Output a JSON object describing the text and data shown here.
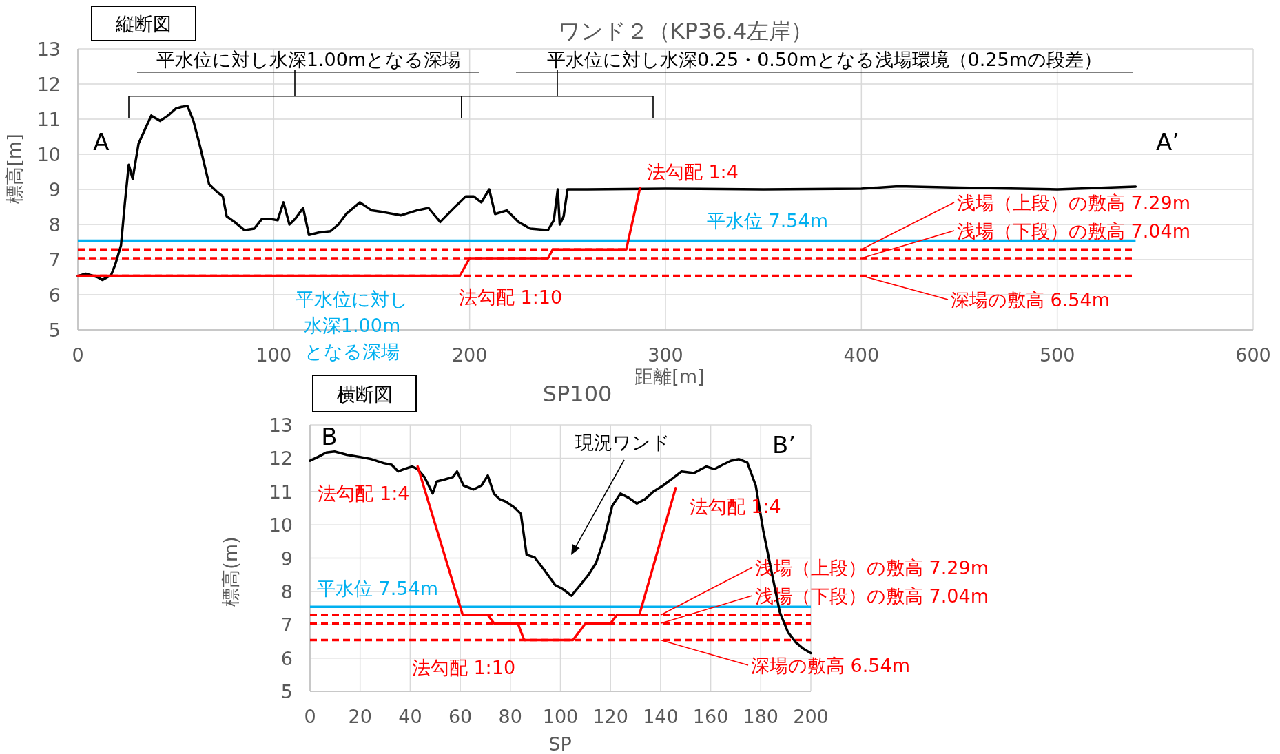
{
  "chart_data": [
    {
      "type": "line",
      "title": "ワンド２（KP36.4左岸）",
      "xlabel": "距離[m]",
      "ylabel": "標高[m]",
      "xlim": [
        0,
        600
      ],
      "xticks": [
        0,
        100,
        200,
        300,
        400,
        500,
        600
      ],
      "ylim": [
        5,
        13
      ],
      "yticks": [
        5,
        6,
        7,
        8,
        9,
        10,
        11,
        12,
        13
      ],
      "grid": true,
      "line_style": "solid",
      "marker": "none",
      "series": [
        {
          "color": "#000000",
          "x": [
            0,
            4,
            10,
            12.5,
            17,
            19,
            22,
            24,
            26,
            28,
            31,
            35,
            37.5,
            42,
            46,
            50,
            53,
            56,
            59,
            62.5,
            67,
            71,
            74,
            76,
            80,
            85,
            90,
            94,
            98,
            102,
            105,
            108,
            111,
            115,
            118,
            123,
            129,
            133,
            137,
            144,
            150,
            156,
            165,
            173,
            179,
            185,
            192,
            198,
            202,
            206,
            210,
            213,
            219,
            225,
            231,
            240,
            243,
            245,
            246,
            248,
            250,
            260,
            300,
            350,
            400,
            419,
            450,
            500,
            540
          ],
          "values": [
            6.53,
            6.6,
            6.5,
            6.42,
            6.56,
            6.84,
            7.4,
            8.6,
            9.7,
            9.3,
            10.3,
            10.8,
            11.1,
            10.95,
            11.1,
            11.3,
            11.35,
            11.37,
            10.95,
            10.2,
            9.15,
            8.93,
            8.8,
            8.23,
            8.07,
            7.84,
            7.88,
            8.16,
            8.16,
            8.12,
            8.63,
            8.0,
            8.16,
            8.47,
            7.7,
            7.77,
            7.81,
            8.0,
            8.3,
            8.63,
            8.4,
            8.35,
            8.26,
            8.4,
            8.47,
            8.07,
            8.47,
            8.8,
            8.8,
            8.63,
            9.0,
            8.3,
            8.4,
            8.07,
            7.88,
            7.84,
            8.12,
            9.0,
            8.0,
            8.23,
            9.0,
            9.0,
            9.02,
            9.0,
            9.02,
            9.09,
            9.05,
            9.0,
            9.08
          ]
        },
        {
          "color": "#ff0000",
          "x": [
            0,
            195,
            200,
            240,
            242.5,
            280,
            287
          ],
          "values": [
            6.54,
            6.54,
            7.04,
            7.04,
            7.29,
            7.29,
            9.04
          ]
        }
      ],
      "ref_lines": [
        {
          "axis": "y",
          "value": 7.54,
          "label": "平水位 7.54m",
          "color": "#00b0f0",
          "line_style": "solid"
        },
        {
          "axis": "y",
          "value": 7.29,
          "label": "浅場（上段）の敷高 7.29m",
          "color": "#ff0000",
          "line_style": "dashed"
        },
        {
          "axis": "y",
          "value": 7.04,
          "label": "浅場（下段）の敷高 7.04m",
          "color": "#ff0000",
          "line_style": "dashed"
        },
        {
          "axis": "y",
          "value": 6.54,
          "label": "深場の敷高 6.54m",
          "color": "#ff0000",
          "line_style": "dashed"
        }
      ],
      "annotations": [
        "縦断図",
        "A",
        "A’",
        "平水位に対し水深1.00mとなる深場",
        "平水位に対し水深0.25・0.50mとなる浅場環境（0.25mの段差）",
        {
          "text": "法勾配 1:4",
          "x": 285,
          "y": 9.04
        },
        {
          "text": "法勾配 1:10",
          "x": 197,
          "y": 6.8
        },
        {
          "text": "平水位に対し水深1.00mとなる深場",
          "x": 140,
          "y": 6.54
        }
      ]
    },
    {
      "type": "line",
      "title": "SP100",
      "xlabel": "SP",
      "ylabel": "標高(m)",
      "xlim": [
        0,
        200
      ],
      "xticks": [
        0,
        20,
        40,
        60,
        80,
        100,
        120,
        140,
        160,
        180,
        200
      ],
      "ylim": [
        5,
        13
      ],
      "yticks": [
        5,
        6,
        7,
        8,
        9,
        10,
        11,
        12,
        13
      ],
      "grid": true,
      "line_style": "solid",
      "marker": "none",
      "series": [
        {
          "color": "#000000",
          "x": [
            0,
            3.3,
            6.5,
            9.8,
            14.7,
            19.6,
            24.5,
            29.4,
            32.6,
            35.2,
            37.5,
            40.8,
            43,
            45.7,
            49,
            50.6,
            53.8,
            57,
            58.7,
            61.3,
            65.3,
            68.5,
            71,
            73.4,
            75.7,
            78.3,
            81.6,
            84.2,
            86.5,
            89.7,
            94,
            97.9,
            101,
            104.4,
            107.7,
            111,
            114.2,
            117.5,
            120.7,
            124,
            127.2,
            130.5,
            133.8,
            137,
            141,
            144.2,
            148.4,
            153.3,
            158.2,
            161.5,
            164.8,
            168,
            171.3,
            174.6,
            178,
            181,
            184.3,
            187.6,
            190.9,
            194,
            197,
            200
          ],
          "values": [
            11.92,
            12.04,
            12.17,
            12.2,
            12.1,
            12.04,
            11.97,
            11.85,
            11.8,
            11.6,
            11.67,
            11.75,
            11.67,
            11.43,
            10.94,
            11.3,
            11.36,
            11.43,
            11.6,
            11.18,
            11.06,
            11.18,
            11.48,
            10.94,
            10.77,
            10.69,
            10.52,
            10.33,
            9.1,
            9.02,
            8.6,
            8.19,
            8.07,
            7.87,
            8.17,
            8.48,
            8.85,
            9.59,
            10.57,
            10.94,
            10.81,
            10.64,
            10.77,
            10.99,
            11.18,
            11.36,
            11.6,
            11.55,
            11.75,
            11.67,
            11.8,
            11.92,
            11.97,
            11.87,
            11.18,
            9.83,
            8.6,
            7.38,
            6.77,
            6.47,
            6.28,
            6.15
          ]
        },
        {
          "color": "#ff0000",
          "x": [
            43,
            61,
            71,
            73.5,
            83,
            85.5,
            105,
            110,
            120,
            122.5,
            131.5,
            146
          ],
          "values": [
            11.75,
            7.29,
            7.29,
            7.04,
            7.04,
            6.54,
            6.54,
            7.04,
            7.04,
            7.29,
            7.29,
            11.1
          ]
        }
      ],
      "ref_lines": [
        {
          "axis": "y",
          "value": 7.54,
          "label": "平水位 7.54m",
          "color": "#00b0f0",
          "line_style": "solid"
        },
        {
          "axis": "y",
          "value": 7.29,
          "label": "浅場（上段）の敷高 7.29m",
          "color": "#ff0000",
          "line_style": "dashed"
        },
        {
          "axis": "y",
          "value": 7.04,
          "label": "浅場（下段）の敷高 7.04m",
          "color": "#ff0000",
          "line_style": "dashed"
        },
        {
          "axis": "y",
          "value": 6.54,
          "label": "深場の敷高 6.54m",
          "color": "#ff0000",
          "line_style": "dashed"
        }
      ],
      "annotations": [
        "横断図",
        "B",
        "B’",
        {
          "text": "法勾配 1:4",
          "x": 52,
          "y": 9.5
        },
        {
          "text": "法勾配 1:4",
          "x": 142,
          "y": 9.8
        },
        {
          "text": "法勾配 1:10",
          "x": 85,
          "y": 6.7
        },
        "現況ワンド"
      ]
    }
  ]
}
